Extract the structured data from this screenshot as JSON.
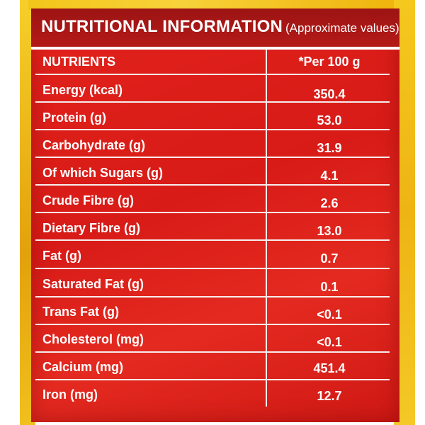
{
  "header": {
    "title": "NUTRITIONAL INFORMATION",
    "subtitle": "(Approximate values)"
  },
  "table": {
    "columns": [
      "NUTRIENTS",
      "*Per 100 g"
    ],
    "rows": [
      {
        "nutrient": "Energy (kcal)",
        "value": "350.4"
      },
      {
        "nutrient": "Protein (g)",
        "value": "53.0"
      },
      {
        "nutrient": "Carbohydrate (g)",
        "value": "31.9"
      },
      {
        "nutrient": "Of which Sugars (g)",
        "value": "4.1"
      },
      {
        "nutrient": "Crude Fibre (g)",
        "value": "2.6"
      },
      {
        "nutrient": "Dietary Fibre (g)",
        "value": "13.0"
      },
      {
        "nutrient": "Fat (g)",
        "value": "0.7"
      },
      {
        "nutrient": "Saturated Fat (g)",
        "value": "0.1"
      },
      {
        "nutrient": "Trans Fat (g)",
        "value": "<0.1"
      },
      {
        "nutrient": "Cholesterol (mg)",
        "value": "<0.1"
      },
      {
        "nutrient": "Calcium (mg)",
        "value": "451.4"
      },
      {
        "nutrient": "Iron (mg)",
        "value": "12.7"
      }
    ]
  },
  "colors": {
    "label_red": "#d81b17",
    "title_band": "#9c1414",
    "packet_yellow": "#f3c51a",
    "text": "#ffffff"
  }
}
